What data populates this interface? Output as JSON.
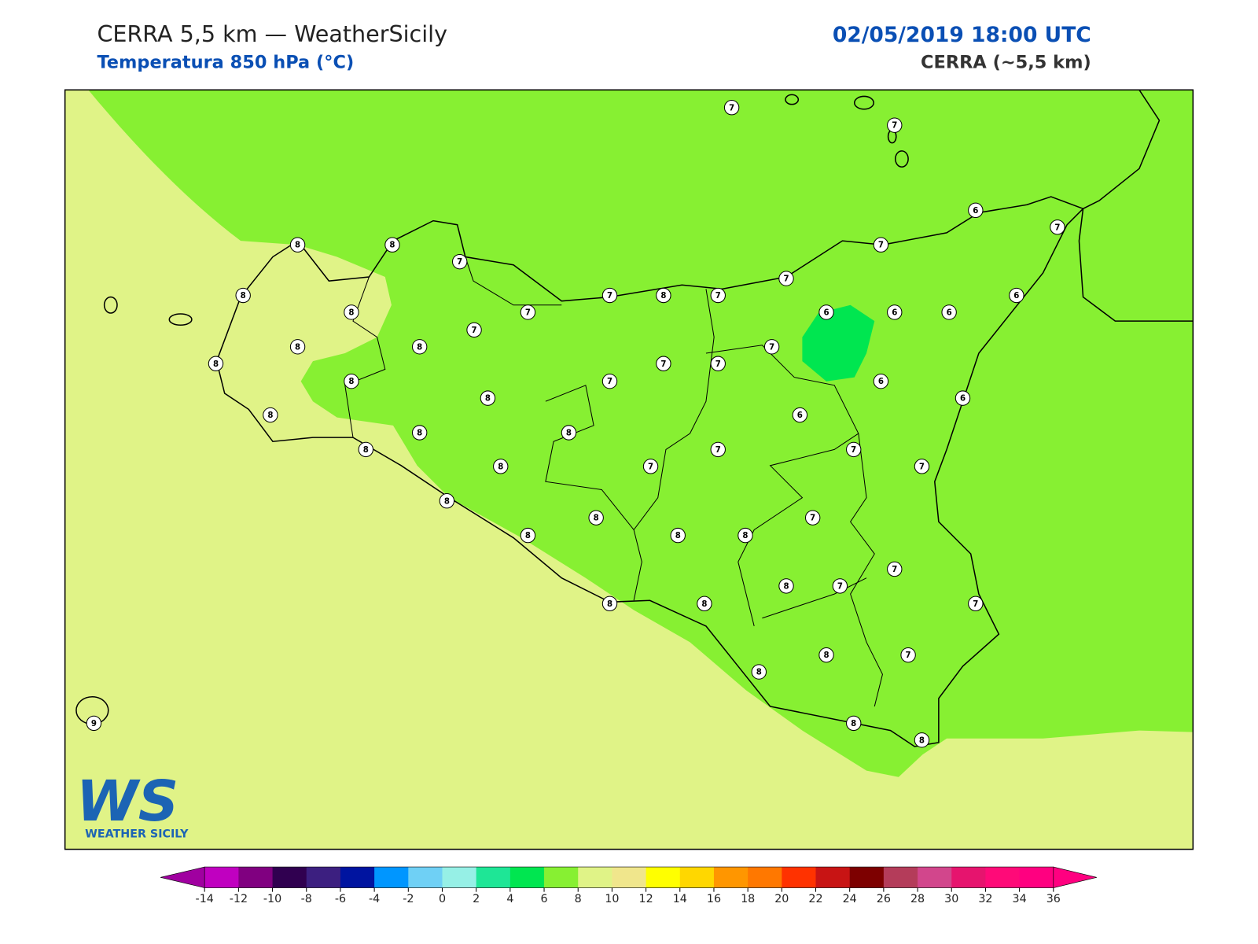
{
  "header": {
    "title": "CERRA 5,5 km — WeatherSicily",
    "subtitle": "Temperatura 850 hPa (°C)",
    "datetime": "02/05/2019 18:00 UTC",
    "model": "CERRA (~5,5 km)"
  },
  "logo": {
    "mark": "WS",
    "name": "WEATHER SICILY"
  },
  "map": {
    "background_color": "#e0f387",
    "field_colors": [
      "#87f032",
      "#00e650"
    ]
  },
  "stations": {
    "values": [
      7,
      7,
      6,
      7,
      7,
      8,
      8,
      7,
      7,
      8,
      7,
      8,
      7,
      6,
      8,
      7,
      6,
      6,
      6,
      7,
      8,
      8,
      7,
      8,
      7,
      7,
      8,
      7,
      6,
      8,
      6,
      8,
      6,
      8,
      8,
      8,
      7,
      7,
      8,
      7,
      7,
      8,
      8,
      7,
      8,
      8,
      8,
      7,
      8,
      7,
      8,
      8,
      7,
      8,
      8,
      7,
      9,
      8,
      8
    ]
  },
  "colorbar": {
    "ticks": [
      -14,
      -12,
      -10,
      -8,
      -6,
      -4,
      -2,
      0,
      2,
      4,
      6,
      8,
      10,
      12,
      14,
      16,
      18,
      20,
      22,
      24,
      26,
      28,
      30,
      32,
      34,
      36
    ],
    "under_color": "#a000a0",
    "over_color": "#ff0080",
    "colors": [
      "#c000c0",
      "#800080",
      "#300050",
      "#3c1f80",
      "#0014a0",
      "#0096ff",
      "#6fd0f5",
      "#96f0e6",
      "#1ee696",
      "#00e650",
      "#87f032",
      "#e0f387",
      "#f0e68c",
      "#ffff00",
      "#ffd700",
      "#ff9600",
      "#ff7800",
      "#ff3200",
      "#c81414",
      "#7d0000",
      "#b43c5a",
      "#d2468c",
      "#e6146e",
      "#ff0a78",
      "#ff0080"
    ]
  }
}
